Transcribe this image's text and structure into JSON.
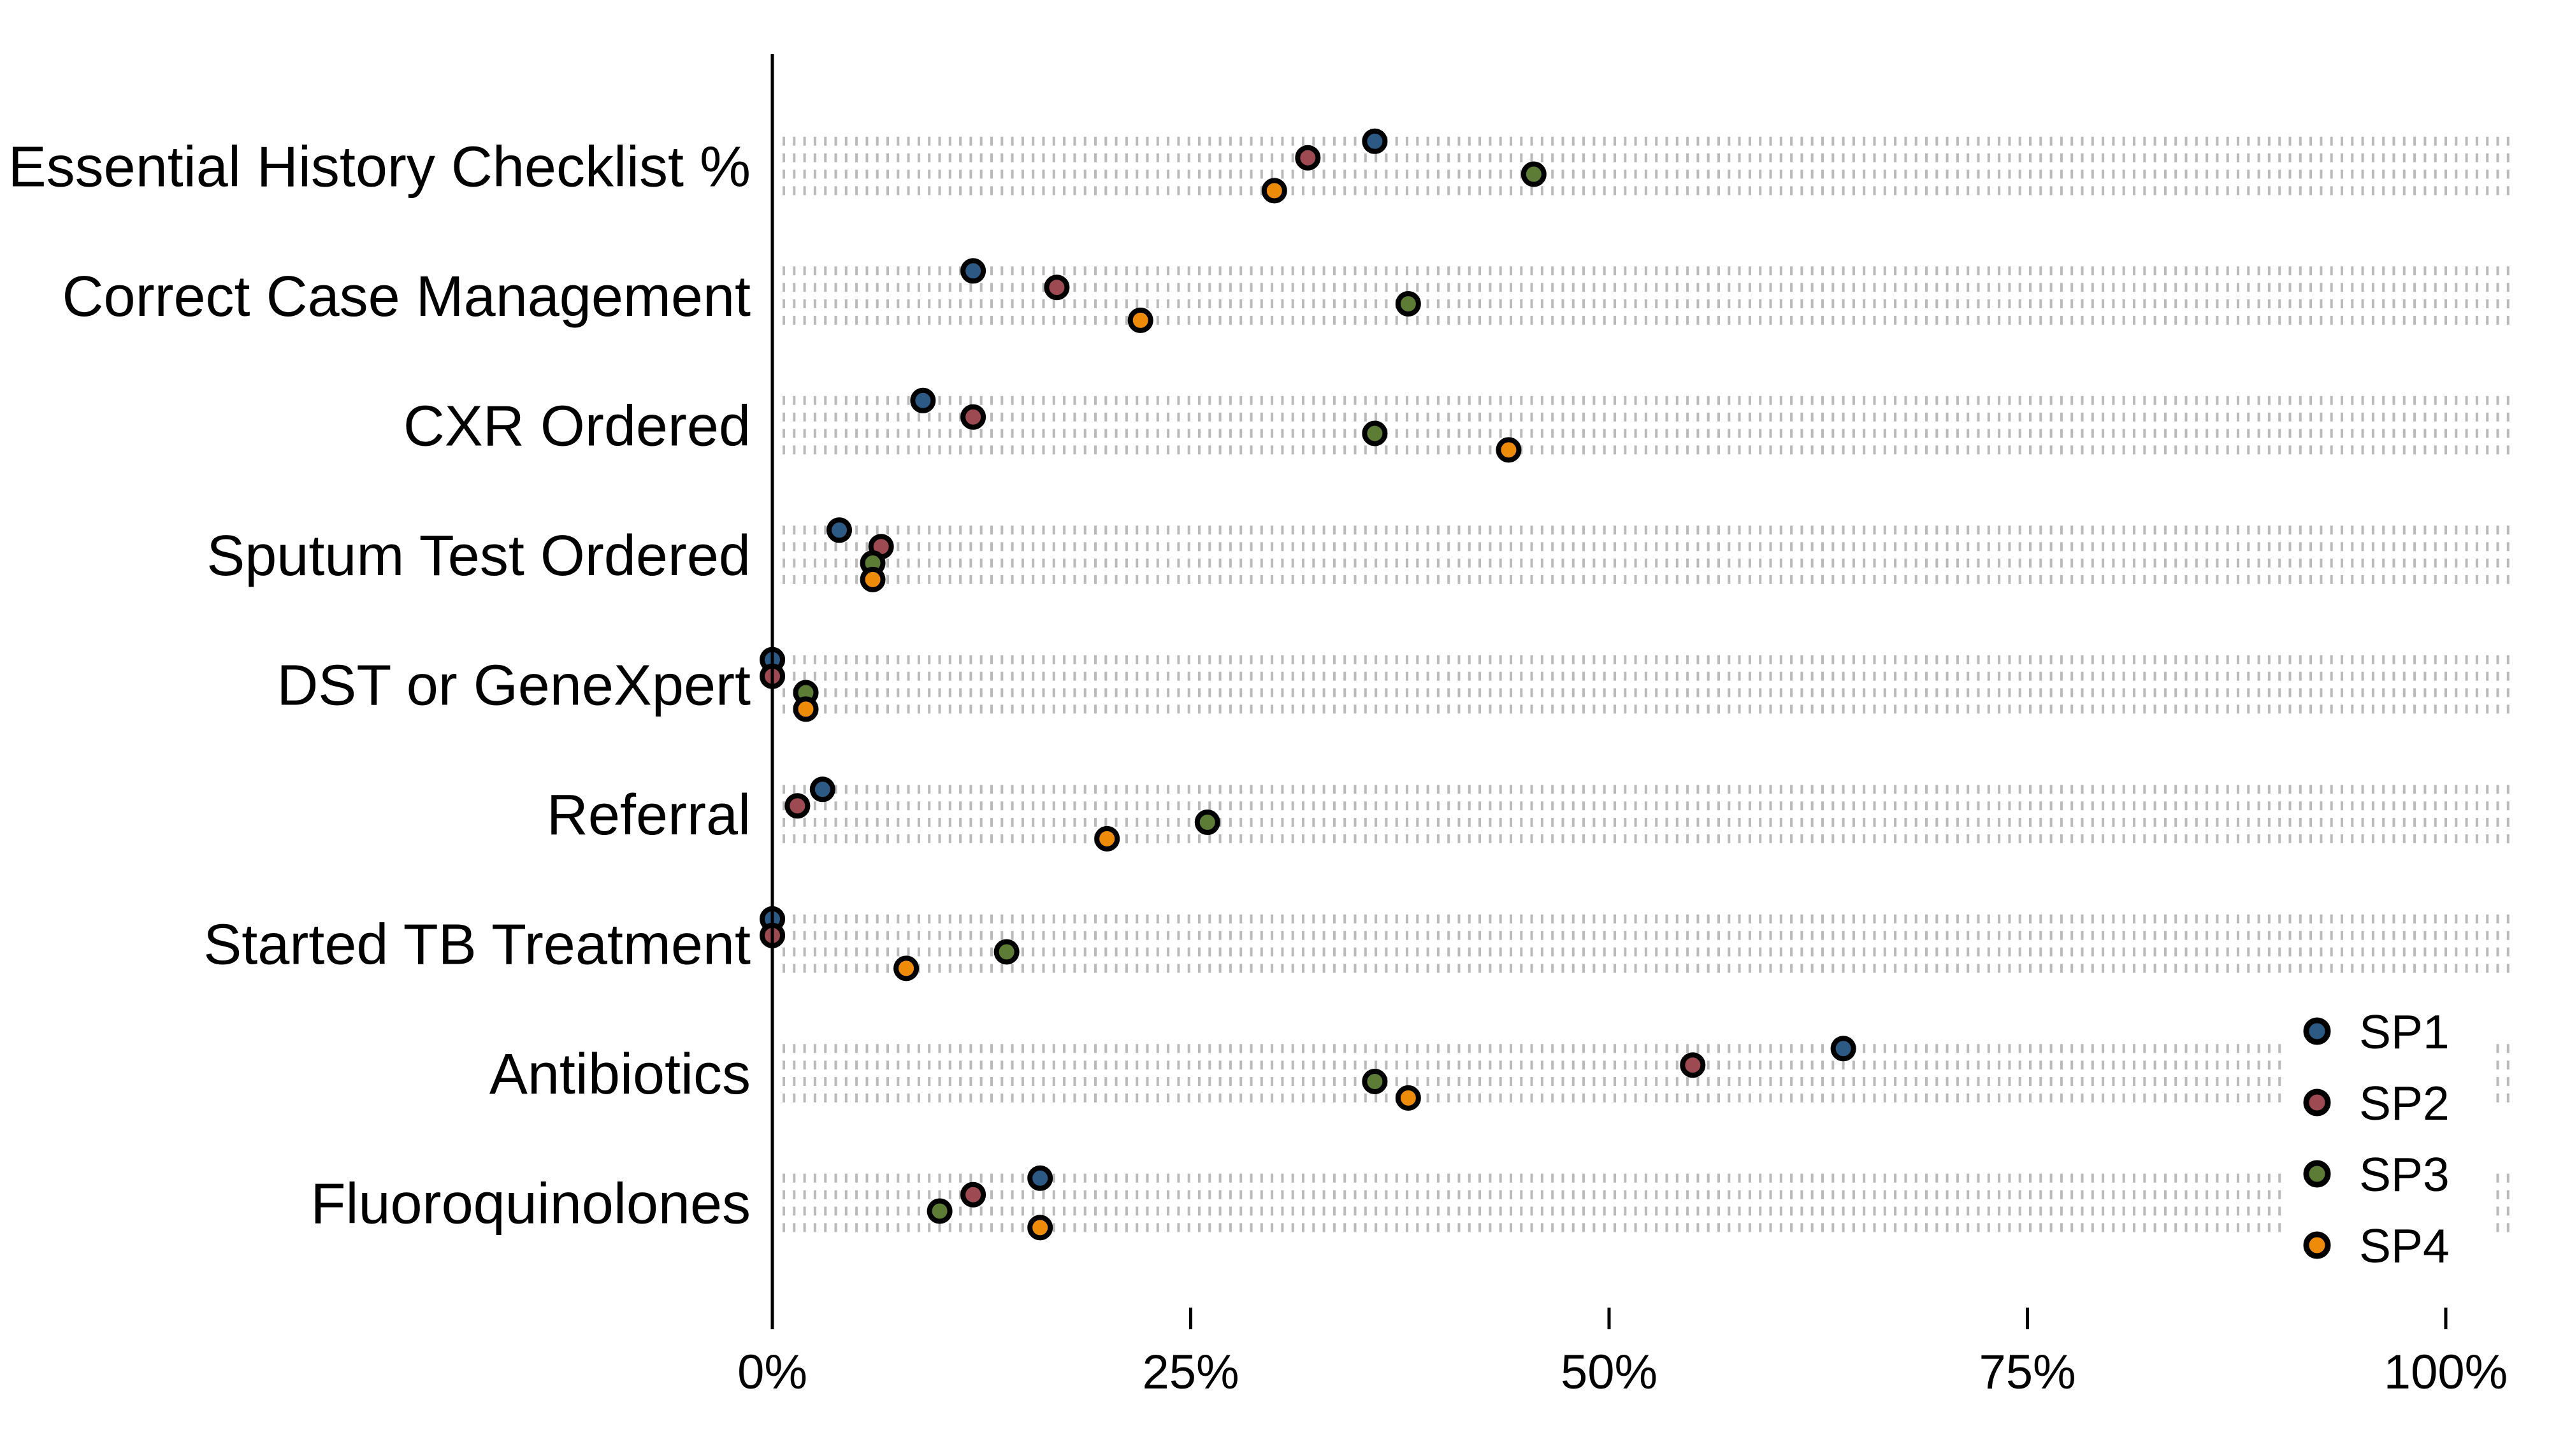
{
  "chart_data": {
    "type": "scatter",
    "variant": "horizontal-dot-plot",
    "title": "",
    "xlabel": "",
    "ylabel": "",
    "categories": [
      "Essential History Checklist %",
      "Correct Case Management",
      "CXR Ordered",
      "Sputum Test Ordered",
      "DST or GeneXpert",
      "Referral",
      "Started TB Treatment",
      "Antibiotics",
      "Fluoroquinolones"
    ],
    "series": [
      {
        "name": "SP1",
        "color": "#2d5a84",
        "values": [
          36,
          12,
          9,
          4,
          0,
          3,
          0,
          64,
          16
        ]
      },
      {
        "name": "SP2",
        "color": "#9d4a52",
        "values": [
          32,
          17,
          12,
          6.5,
          0,
          1.5,
          0,
          55,
          12
        ]
      },
      {
        "name": "SP3",
        "color": "#5d7c35",
        "values": [
          45.5,
          38,
          36,
          6,
          2,
          26,
          14,
          36,
          10
        ]
      },
      {
        "name": "SP4",
        "color": "#ee8c09",
        "values": [
          30,
          22,
          44,
          6,
          2,
          20,
          8,
          38,
          16
        ]
      }
    ],
    "xlim": [
      0,
      100
    ],
    "x_tick_values": [
      0,
      25,
      50,
      75,
      100
    ],
    "x_tick_labels": [
      "0%",
      "25%",
      "50%",
      "75%",
      "100%"
    ],
    "values_unit": "percent",
    "grid": "dotted horizontal guide line per series within each category",
    "gridline_color": "#bababa",
    "axis_color": "#000000",
    "marker_outline_color": "#000000",
    "legend_position": "inside-bottom-right",
    "legend_entries": [
      "SP1",
      "SP2",
      "SP3",
      "SP4"
    ]
  }
}
